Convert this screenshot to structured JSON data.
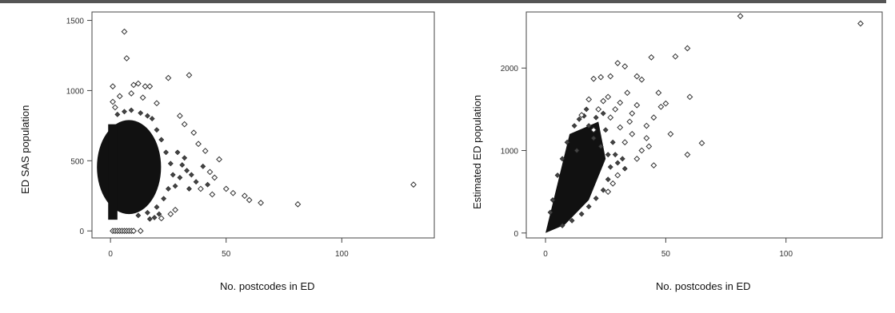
{
  "chart_data": [
    {
      "type": "scatter",
      "title": "",
      "xlabel": "No. postcodes in ED",
      "ylabel": "ED SAS population",
      "xlim": [
        -8,
        140
      ],
      "ylim": [
        -50,
        1560
      ],
      "xticks": [
        0,
        50,
        100
      ],
      "yticks": [
        0,
        500,
        1000,
        1500
      ],
      "grid": false,
      "marker": "open-diamond",
      "marker_color": "#333333",
      "core_cloud": [
        {
          "x": 3,
          "y": 200
        },
        {
          "x": 8,
          "y": 450
        },
        {
          "x": 15,
          "y": 350
        }
      ],
      "points": [
        {
          "x": 1,
          "y": 1030
        },
        {
          "x": 1,
          "y": 920
        },
        {
          "x": 2,
          "y": 880
        },
        {
          "x": 6,
          "y": 1420
        },
        {
          "x": 7,
          "y": 1230
        },
        {
          "x": 10,
          "y": 1040
        },
        {
          "x": 12,
          "y": 1050
        },
        {
          "x": 15,
          "y": 1030
        },
        {
          "x": 17,
          "y": 1030
        },
        {
          "x": 25,
          "y": 1090
        },
        {
          "x": 34,
          "y": 1110
        },
        {
          "x": 9,
          "y": 980
        },
        {
          "x": 14,
          "y": 950
        },
        {
          "x": 20,
          "y": 910
        },
        {
          "x": 4,
          "y": 960
        },
        {
          "x": 36,
          "y": 700
        },
        {
          "x": 38,
          "y": 620
        },
        {
          "x": 41,
          "y": 570
        },
        {
          "x": 43,
          "y": 420
        },
        {
          "x": 45,
          "y": 380
        },
        {
          "x": 47,
          "y": 510
        },
        {
          "x": 50,
          "y": 300
        },
        {
          "x": 53,
          "y": 270
        },
        {
          "x": 58,
          "y": 250
        },
        {
          "x": 60,
          "y": 220
        },
        {
          "x": 65,
          "y": 200
        },
        {
          "x": 81,
          "y": 190
        },
        {
          "x": 131,
          "y": 330
        },
        {
          "x": 30,
          "y": 820
        },
        {
          "x": 32,
          "y": 760
        },
        {
          "x": 28,
          "y": 150
        },
        {
          "x": 26,
          "y": 120
        },
        {
          "x": 22,
          "y": 90
        },
        {
          "x": 39,
          "y": 300
        },
        {
          "x": 44,
          "y": 260
        },
        {
          "x": 1,
          "y": 0
        },
        {
          "x": 2,
          "y": 0
        },
        {
          "x": 3,
          "y": 0
        },
        {
          "x": 4,
          "y": 0
        },
        {
          "x": 5,
          "y": 0
        },
        {
          "x": 6,
          "y": 0
        },
        {
          "x": 7,
          "y": 0
        },
        {
          "x": 8,
          "y": 0
        },
        {
          "x": 9,
          "y": 0
        },
        {
          "x": 10,
          "y": 0
        },
        {
          "x": 13,
          "y": 0
        }
      ]
    },
    {
      "type": "scatter",
      "title": "",
      "xlabel": "No. postcodes in ED",
      "ylabel": "Estimated ED population",
      "xlim": [
        -8,
        140
      ],
      "ylim": [
        -60,
        2680
      ],
      "xticks": [
        0,
        50,
        100
      ],
      "yticks": [
        0,
        1000,
        2000
      ],
      "grid": false,
      "marker": "open-diamond",
      "marker_color": "#333333",
      "core_wedge": [
        {
          "x": 0,
          "y": 0
        },
        {
          "x": 10,
          "y": 1200
        },
        {
          "x": 22,
          "y": 1350
        },
        {
          "x": 25,
          "y": 900
        },
        {
          "x": 18,
          "y": 400
        },
        {
          "x": 8,
          "y": 100
        }
      ],
      "points": [
        {
          "x": 81,
          "y": 2630
        },
        {
          "x": 131,
          "y": 2540
        },
        {
          "x": 59,
          "y": 2240
        },
        {
          "x": 54,
          "y": 2140
        },
        {
          "x": 44,
          "y": 2130
        },
        {
          "x": 30,
          "y": 2060
        },
        {
          "x": 33,
          "y": 2020
        },
        {
          "x": 38,
          "y": 1900
        },
        {
          "x": 40,
          "y": 1860
        },
        {
          "x": 27,
          "y": 1900
        },
        {
          "x": 23,
          "y": 1890
        },
        {
          "x": 20,
          "y": 1870
        },
        {
          "x": 60,
          "y": 1650
        },
        {
          "x": 50,
          "y": 1570
        },
        {
          "x": 48,
          "y": 1530
        },
        {
          "x": 47,
          "y": 1700
        },
        {
          "x": 45,
          "y": 1400
        },
        {
          "x": 42,
          "y": 1300
        },
        {
          "x": 38,
          "y": 1550
        },
        {
          "x": 36,
          "y": 1450
        },
        {
          "x": 34,
          "y": 1700
        },
        {
          "x": 31,
          "y": 1580
        },
        {
          "x": 29,
          "y": 1500
        },
        {
          "x": 26,
          "y": 1650
        },
        {
          "x": 24,
          "y": 1600
        },
        {
          "x": 18,
          "y": 1620
        },
        {
          "x": 15,
          "y": 1430
        },
        {
          "x": 65,
          "y": 1090
        },
        {
          "x": 59,
          "y": 950
        },
        {
          "x": 43,
          "y": 1050
        },
        {
          "x": 40,
          "y": 1000
        },
        {
          "x": 38,
          "y": 900
        },
        {
          "x": 36,
          "y": 1200
        },
        {
          "x": 33,
          "y": 1100
        },
        {
          "x": 31,
          "y": 1280
        },
        {
          "x": 30,
          "y": 700
        },
        {
          "x": 28,
          "y": 600
        },
        {
          "x": 27,
          "y": 1400
        },
        {
          "x": 26,
          "y": 500
        },
        {
          "x": 45,
          "y": 820
        },
        {
          "x": 42,
          "y": 1150
        },
        {
          "x": 52,
          "y": 1200
        },
        {
          "x": 35,
          "y": 1350
        },
        {
          "x": 22,
          "y": 1500
        },
        {
          "x": 20,
          "y": 1250
        }
      ]
    }
  ]
}
